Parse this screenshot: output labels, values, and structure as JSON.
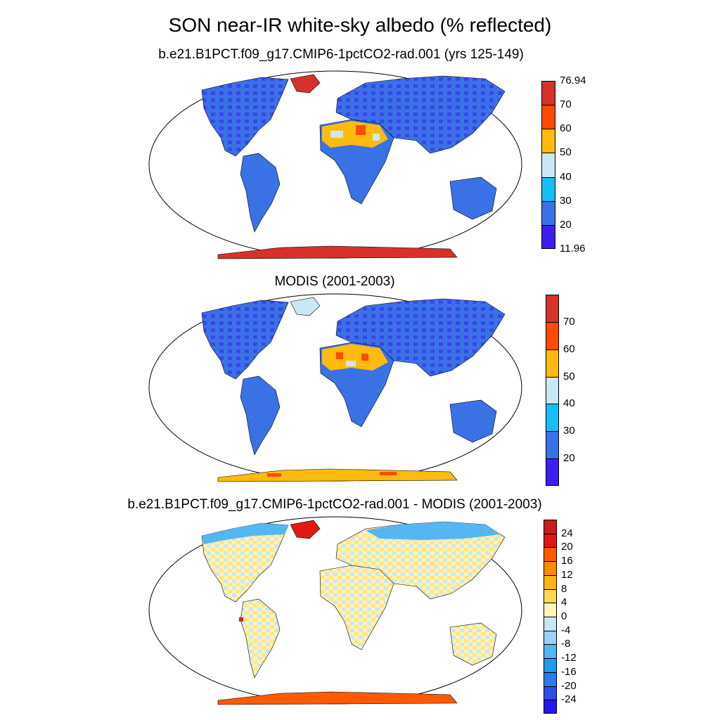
{
  "title": "SON near-IR white-sky albedo (% reflected)",
  "panels": [
    {
      "title": "b.e21.B1PCT.f09_g17.CMIP6-1pctCO2-rad.001 (yrs 125-149)",
      "colorbar": {
        "colors": [
          "#3c1ef0",
          "#3a72e6",
          "#18bdf6",
          "#c9e7f5",
          "#ffbb0d",
          "#ff4a00",
          "#d6312b"
        ],
        "labels": [
          "11.96",
          "20",
          "30",
          "40",
          "50",
          "60",
          "70",
          "76.94"
        ]
      }
    },
    {
      "title": "MODIS (2001-2003)",
      "colorbar": {
        "colors": [
          "#3c1ef0",
          "#3a72e6",
          "#18bdf6",
          "#c9e7f5",
          "#ffbb0d",
          "#ff4a00",
          "#d6312b"
        ],
        "labels": [
          "",
          "20",
          "30",
          "40",
          "50",
          "60",
          "70",
          ""
        ]
      }
    },
    {
      "title": "b.e21.B1PCT.f09_g17.CMIP6-1pctCO2-rad.001 - MODIS (2001-2003)",
      "colorbar": {
        "colors": [
          "#2418f0",
          "#2a4fe6",
          "#2f79ee",
          "#1e9bf2",
          "#55b6f1",
          "#9dd2f3",
          "#c9e6f5",
          "#fff6b8",
          "#ffdb55",
          "#ffb414",
          "#ff8a00",
          "#ff5a00",
          "#e01a12",
          "#c81e1e"
        ],
        "labels": [
          "",
          "-24",
          "-20",
          "-16",
          "-12",
          "-8",
          "-4",
          "0",
          "4",
          "8",
          "12",
          "16",
          "20",
          "24",
          ""
        ]
      }
    }
  ]
}
